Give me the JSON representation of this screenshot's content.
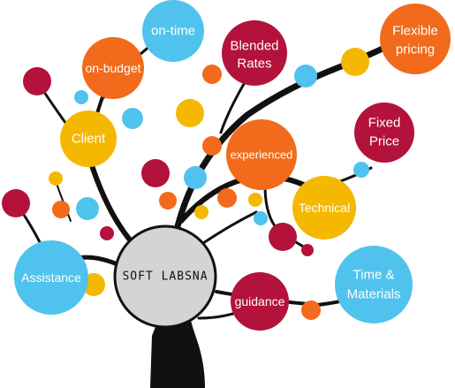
{
  "center": {
    "label": "SOFT LABSNA"
  },
  "nodes": {
    "on_time": "on-time",
    "on_budget": "on-budget",
    "blended_rates_line1": "Blended",
    "blended_rates_line2": "Rates",
    "flexible_pricing_line1": "Flexible",
    "flexible_pricing_line2": "pricing",
    "client": "Client",
    "experienced": "experienced",
    "fixed_price_line1": "Fixed",
    "fixed_price_line2": "Price",
    "technical": "Technical",
    "assistance": "Assistance",
    "guidance": "guidance",
    "time_materials_line1": "Time &",
    "time_materials_line2": "Materials"
  },
  "colors": {
    "blue": "#4fc3ee",
    "orange": "#f26a1b",
    "crimson": "#b3123b",
    "yellow": "#f5b800",
    "center_fill": "#d4d4d4",
    "trunk": "#111111"
  }
}
